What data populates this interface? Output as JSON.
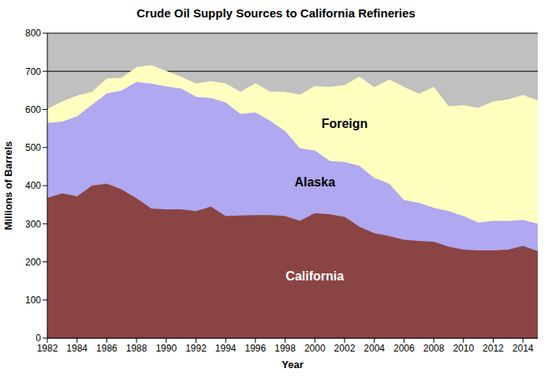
{
  "chart_data": {
    "type": "area",
    "title": "Crude Oil Supply Sources to California Refineries",
    "x_label": "Year",
    "y_label": "Millions of Barrels",
    "x": [
      1982,
      1983,
      1984,
      1985,
      1986,
      1987,
      1988,
      1989,
      1990,
      1991,
      1992,
      1993,
      1994,
      1995,
      1996,
      1997,
      1998,
      1999,
      2000,
      2001,
      2002,
      2003,
      2004,
      2005,
      2006,
      2007,
      2008,
      2009,
      2010,
      2011,
      2012,
      2013,
      2014,
      2015
    ],
    "series": [
      {
        "name": "California",
        "color": "#8B4444",
        "values": [
          368,
          380,
          372,
          400,
          405,
          390,
          367,
          340,
          338,
          338,
          333,
          345,
          320,
          322,
          323,
          323,
          320,
          308,
          328,
          325,
          318,
          292,
          275,
          268,
          258,
          255,
          253,
          240,
          232,
          230,
          230,
          232,
          242,
          228
        ]
      },
      {
        "name": "Alaska",
        "color": "#B0A8F0",
        "values": [
          197,
          188,
          210,
          212,
          237,
          260,
          305,
          328,
          322,
          317,
          300,
          285,
          298,
          266,
          269,
          247,
          223,
          190,
          164,
          140,
          144,
          160,
          145,
          137,
          104,
          100,
          89,
          93,
          88,
          73,
          78,
          75,
          68,
          72
        ]
      },
      {
        "name": "Foreign",
        "color": "#FFFFC0",
        "values": [
          35,
          52,
          53,
          33,
          38,
          32,
          38,
          47,
          40,
          30,
          34,
          43,
          49,
          57,
          76,
          75,
          102,
          140,
          168,
          193,
          201,
          233,
          237,
          272,
          296,
          285,
          316,
          274,
          290,
          300,
          312,
          318,
          327,
          322
        ]
      }
    ],
    "stacked": true,
    "grid": true,
    "xlim": [
      1982,
      2015
    ],
    "xticks": [
      1982,
      1984,
      1986,
      1988,
      1990,
      1992,
      1994,
      1996,
      1998,
      2000,
      2002,
      2004,
      2006,
      2008,
      2010,
      2012,
      2014
    ],
    "ylim": [
      0,
      800
    ],
    "yticks": [
      0,
      100,
      200,
      300,
      400,
      500,
      600,
      700,
      800
    ]
  }
}
